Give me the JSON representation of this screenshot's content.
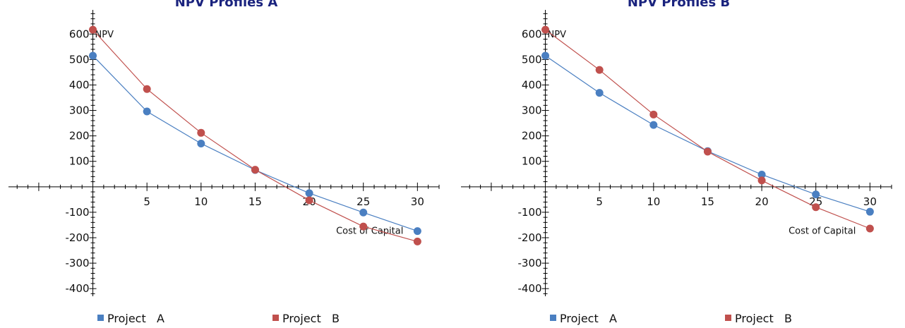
{
  "chart_data": [
    {
      "type": "line",
      "title": "NPV Profiles A",
      "xlabel": "Cost of Capital",
      "ylabel": "NPV",
      "x": [
        0,
        5,
        10,
        15,
        20,
        25,
        30
      ],
      "xticks": [
        5,
        10,
        15,
        20,
        25,
        30
      ],
      "yticks": [
        -400,
        -300,
        -200,
        -100,
        100,
        200,
        300,
        400,
        500,
        600
      ],
      "xlim": [
        -7.8,
        32
      ],
      "ylim": [
        -430,
        695
      ],
      "grid": false,
      "legend_position": "bottom",
      "series": [
        {
          "name": "Project   A",
          "color": "#4a7fc1",
          "values": [
            515,
            296,
            170,
            66,
            -25,
            -101,
            -174
          ]
        },
        {
          "name": "Project   B",
          "color": "#c0504d",
          "values": [
            617,
            384,
            212,
            67,
            -53,
            -156,
            -215
          ]
        }
      ]
    },
    {
      "type": "line",
      "title": "NPV Profiles B",
      "xlabel": "Cost of Capital",
      "ylabel": "NPV",
      "x": [
        0,
        5,
        10,
        15,
        20,
        25,
        30
      ],
      "xticks": [
        5,
        10,
        15,
        20,
        25,
        30
      ],
      "yticks": [
        -400,
        -300,
        -200,
        -100,
        100,
        200,
        300,
        400,
        500,
        600
      ],
      "xlim": [
        -7.8,
        32
      ],
      "ylim": [
        -430,
        695
      ],
      "grid": false,
      "legend_position": "bottom",
      "series": [
        {
          "name": "Project   A",
          "color": "#4a7fc1",
          "values": [
            515,
            369,
            243,
            140,
            48,
            -30,
            -98
          ]
        },
        {
          "name": "Project   B",
          "color": "#c0504d",
          "values": [
            617,
            459,
            284,
            138,
            25,
            -80,
            -164
          ]
        }
      ]
    }
  ]
}
